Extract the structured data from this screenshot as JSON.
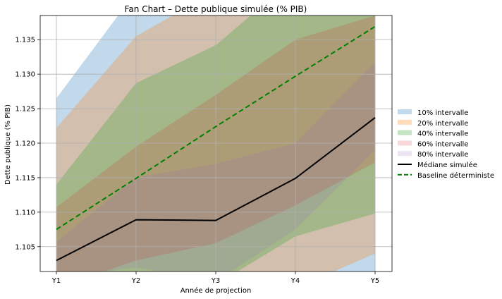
{
  "chart_data": {
    "type": "area",
    "title": "Fan Chart – Dette publique simulée (% PIB)",
    "xlabel": "Année de projection",
    "ylabel": "Dette publique (% PIB)",
    "categories": [
      "Y1",
      "Y2",
      "Y3",
      "Y4",
      "Y5"
    ],
    "ylim": [
      1.1014,
      1.1385
    ],
    "yticks": [
      1.105,
      1.11,
      1.115,
      1.12,
      1.125,
      1.13,
      1.135
    ],
    "ytick_labels": [
      "1.105",
      "1.110",
      "1.115",
      "1.120",
      "1.125",
      "1.130",
      "1.135"
    ],
    "grid": true,
    "legend_position": "right",
    "bands": [
      {
        "name": "10% intervalle",
        "color": "#1f77b4",
        "opacity": 0.28,
        "lower": [
          1.0985,
          1.099,
          1.0985,
          1.099,
          1.0995
        ],
        "upper": [
          1.1265,
          1.142,
          1.144,
          1.145,
          1.146
        ]
      },
      {
        "name": "20% intervalle",
        "color": "#ff7f0e",
        "opacity": 0.28,
        "lower": [
          1.099,
          1.0995,
          1.0995,
          1.099,
          1.104
        ],
        "upper": [
          1.1222,
          1.1355,
          1.142,
          1.144,
          1.145
        ]
      },
      {
        "name": "40% intervalle",
        "color": "#2ca02c",
        "opacity": 0.28,
        "lower": [
          1.099,
          1.0995,
          1.0995,
          1.1065,
          1.1098
        ],
        "upper": [
          1.114,
          1.1287,
          1.1342,
          1.144,
          1.145
        ]
      },
      {
        "name": "60% intervalle",
        "color": "#d62728",
        "opacity": 0.18,
        "lower": [
          1.099,
          1.103,
          1.1055,
          1.111,
          1.1172
        ],
        "upper": [
          1.1107,
          1.1195,
          1.127,
          1.135,
          1.1385
        ]
      },
      {
        "name": "80% intervalle",
        "color": "#9467bd",
        "opacity": 0.18,
        "lower": [
          1.1005,
          1.102,
          1.1,
          1.1075,
          1.119
        ],
        "upper": [
          1.1057,
          1.115,
          1.117,
          1.12,
          1.1318
        ]
      }
    ],
    "series": [
      {
        "name": "Médiane simulée",
        "color": "#000000",
        "style": "solid",
        "values": [
          1.103,
          1.1089,
          1.1088,
          1.1149,
          1.1237
        ]
      },
      {
        "name": "Baseline déterministe",
        "color": "#008000",
        "style": "dashed",
        "values": [
          1.1075,
          1.1149,
          1.1224,
          1.1297,
          1.1369
        ]
      }
    ]
  }
}
